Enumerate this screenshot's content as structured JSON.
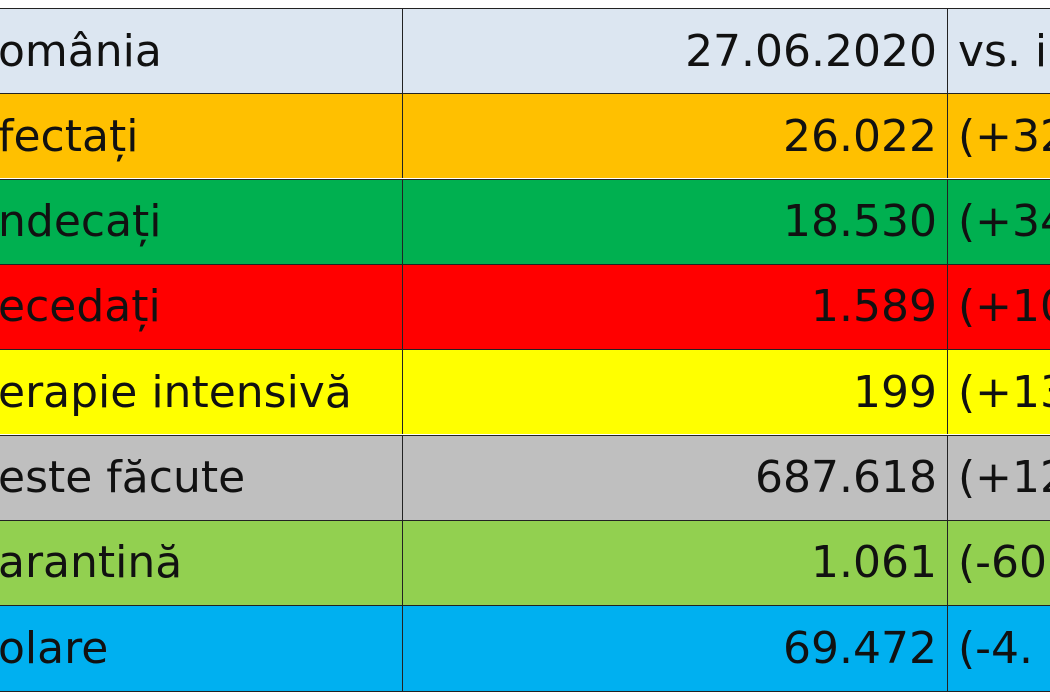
{
  "table": {
    "rows": [
      [
        "omânia",
        "27.06.2020",
        "vs. i"
      ],
      [
        "fectați",
        "26.022",
        "(+32"
      ],
      [
        "ndecați",
        "18.530",
        "(+34"
      ],
      [
        "ecedați",
        "1.589",
        "(+10"
      ],
      [
        "erapie intensivă",
        "199",
        "(+13"
      ],
      [
        "este făcute",
        "687.618",
        "(+12"
      ],
      [
        "arantină",
        "1.061",
        "(-60"
      ],
      [
        "olare",
        "69.472",
        "(-4."
      ]
    ]
  }
}
